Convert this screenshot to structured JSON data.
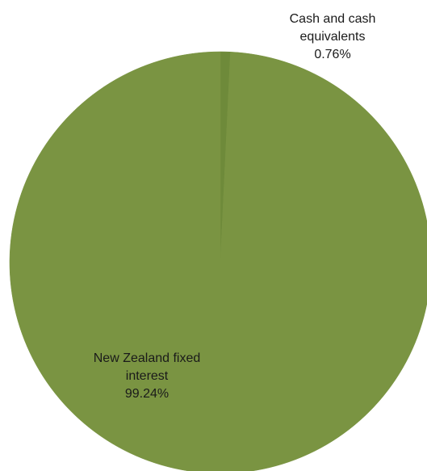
{
  "chart_data": {
    "type": "pie",
    "categories": [
      "Cash and cash equivalents",
      "New Zealand fixed interest"
    ],
    "values": [
      0.76,
      99.24
    ],
    "value_labels": [
      "0.76%",
      "99.24%"
    ],
    "label_lines": [
      [
        "Cash and cash",
        "equivalents",
        "0.76%"
      ],
      [
        "New Zealand fixed",
        "interest",
        "99.24%"
      ]
    ],
    "unit": "%",
    "colors": [
      "#6e8a3a",
      "#7a9442"
    ],
    "start_angle_deg": 0,
    "direction": "clockwise",
    "legend": "none"
  }
}
